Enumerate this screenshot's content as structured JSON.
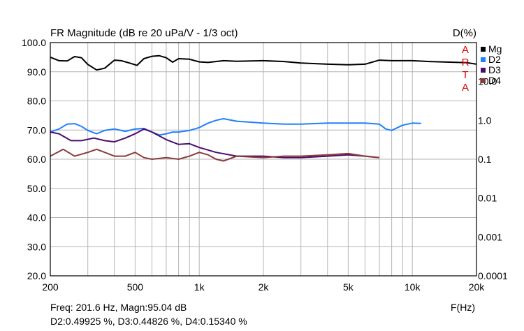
{
  "chart_data": {
    "type": "line",
    "title": "FR Magnitude (dB re 20 uPa/V - 1/3 oct)",
    "right_axis_title": "D(%)",
    "xlabel": "F(Hz)",
    "x_scale": "log",
    "xlim": [
      200,
      20000
    ],
    "x_ticks": [
      {
        "value": 200,
        "label": "200"
      },
      {
        "value": 500,
        "label": "500"
      },
      {
        "value": 1000,
        "label": "1k"
      },
      {
        "value": 2000,
        "label": "2k"
      },
      {
        "value": 5000,
        "label": "5k"
      },
      {
        "value": 10000,
        "label": "10k"
      },
      {
        "value": 20000,
        "label": "20k"
      }
    ],
    "ylim": [
      20,
      100
    ],
    "y_ticks": [
      "20.0",
      "30.0",
      "40.0",
      "50.0",
      "60.0",
      "70.0",
      "80.0",
      "90.0",
      "100.0"
    ],
    "y2_scale": "log",
    "y2lim": [
      0.0001,
      100
    ],
    "y2_ticks": [
      {
        "value": 10,
        "label": "10.0"
      },
      {
        "value": 1,
        "label": "1.0"
      },
      {
        "value": 0.1,
        "label": "0.1"
      },
      {
        "value": 0.01,
        "label": "0.01"
      },
      {
        "value": 0.001,
        "label": "0.001"
      },
      {
        "value": 0.0001,
        "label": "0.0001"
      }
    ],
    "grid": true,
    "legend_position": "right",
    "watermark": [
      "A",
      "R",
      "T",
      "A"
    ],
    "series": [
      {
        "name": "Mg",
        "color": "#000000",
        "axis": "left",
        "x": [
          200,
          220,
          240,
          260,
          280,
          300,
          330,
          360,
          400,
          430,
          470,
          510,
          550,
          600,
          650,
          700,
          750,
          800,
          900,
          1000,
          1100,
          1300,
          1500,
          2000,
          2500,
          3000,
          4000,
          5000,
          6000,
          7000,
          8000,
          10000,
          12000,
          15000,
          18000,
          20000
        ],
        "y": [
          95,
          93.8,
          93.7,
          95.2,
          94.8,
          92.5,
          90.6,
          91.2,
          94,
          93.8,
          93,
          92.2,
          94.5,
          95.3,
          95.5,
          94.8,
          93.3,
          94.5,
          94.3,
          93.4,
          93.2,
          93.8,
          93.6,
          93.8,
          93.5,
          93,
          92.6,
          92.4,
          92.6,
          94,
          93.8,
          93.8,
          93.5,
          93.3,
          93.1,
          92.6
        ]
      },
      {
        "name": "D2",
        "color": "#2080ff",
        "axis": "right",
        "x": [
          200,
          220,
          240,
          260,
          280,
          300,
          330,
          360,
          400,
          450,
          500,
          550,
          600,
          650,
          700,
          750,
          800,
          900,
          1000,
          1100,
          1200,
          1300,
          1500,
          2000,
          2500,
          3000,
          4000,
          5000,
          6000,
          7000,
          7500,
          8000,
          9000,
          10000,
          11000
        ],
        "y": [
          0.5,
          0.6,
          0.8,
          0.82,
          0.7,
          0.55,
          0.45,
          0.55,
          0.6,
          0.52,
          0.6,
          0.62,
          0.5,
          0.42,
          0.45,
          0.5,
          0.5,
          0.55,
          0.65,
          0.85,
          1.0,
          1.1,
          0.95,
          0.85,
          0.8,
          0.8,
          0.85,
          0.85,
          0.85,
          0.8,
          0.6,
          0.55,
          0.75,
          0.85,
          0.83
        ]
      },
      {
        "name": "D3",
        "color": "#4a0d6e",
        "axis": "right",
        "x": [
          200,
          220,
          250,
          280,
          320,
          360,
          400,
          450,
          500,
          550,
          600,
          700,
          800,
          900,
          1000,
          1200,
          1500,
          2000,
          2500,
          3000,
          4000,
          5000,
          6000,
          7000
        ],
        "y": [
          0.5,
          0.45,
          0.3,
          0.3,
          0.35,
          0.3,
          0.28,
          0.35,
          0.45,
          0.6,
          0.5,
          0.32,
          0.24,
          0.25,
          0.2,
          0.15,
          0.12,
          0.12,
          0.11,
          0.11,
          0.12,
          0.13,
          0.12,
          0.11
        ]
      },
      {
        "name": "D4",
        "color": "#8b3a3a",
        "axis": "right",
        "x": [
          200,
          230,
          260,
          300,
          330,
          360,
          400,
          450,
          500,
          550,
          600,
          700,
          800,
          900,
          1000,
          1100,
          1200,
          1300,
          1500,
          2000,
          2500,
          3000,
          4000,
          5000,
          6000,
          7000
        ],
        "y": [
          0.12,
          0.18,
          0.12,
          0.15,
          0.18,
          0.15,
          0.12,
          0.12,
          0.15,
          0.11,
          0.1,
          0.11,
          0.1,
          0.12,
          0.15,
          0.13,
          0.1,
          0.09,
          0.12,
          0.11,
          0.12,
          0.12,
          0.13,
          0.14,
          0.12,
          0.11
        ]
      }
    ]
  },
  "readout": {
    "line1": "Freq: 201.6 Hz, Magn:95.04 dB",
    "line2": "D2:0.49925 %, D3:0.44826 %, D4:0.15340 %"
  }
}
